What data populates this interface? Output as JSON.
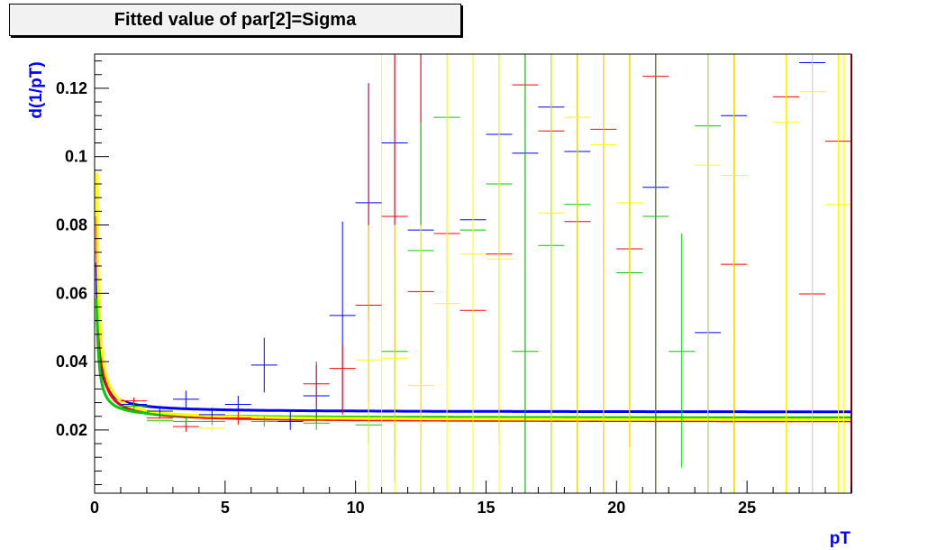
{
  "chart_data": {
    "type": "scatter",
    "title": "Fitted value of par[2]=Sigma",
    "xlabel": "pT",
    "ylabel": "d(1/pT)",
    "xlim": [
      0,
      29
    ],
    "ylim": [
      0.0015,
      0.13
    ],
    "xticks": [
      0,
      5,
      10,
      15,
      20,
      25
    ],
    "yticks": [
      0.02,
      0.04,
      0.06,
      0.08,
      0.1,
      0.12
    ],
    "grid": false,
    "legend": "none",
    "series": [
      {
        "color": "#0000ff",
        "points": [
          {
            "x": 1.5,
            "y": 0.0275,
            "lo": 0.0265,
            "hi": 0.0285
          },
          {
            "x": 2.5,
            "y": 0.0255,
            "lo": 0.0245,
            "hi": 0.0265
          },
          {
            "x": 3.5,
            "y": 0.029,
            "lo": 0.0265,
            "hi": 0.0315
          },
          {
            "x": 4.5,
            "y": 0.0245,
            "lo": 0.0225,
            "hi": 0.0265
          },
          {
            "x": 5.5,
            "y": 0.0275,
            "lo": 0.0255,
            "hi": 0.03
          },
          {
            "x": 6.5,
            "y": 0.039,
            "lo": 0.031,
            "hi": 0.047
          },
          {
            "x": 7.5,
            "y": 0.0225,
            "lo": 0.02,
            "hi": 0.026
          },
          {
            "x": 8.5,
            "y": 0.03,
            "lo": 0.022,
            "hi": 0.039
          },
          {
            "x": 9.5,
            "y": 0.0535,
            "lo": 0.025,
            "hi": 0.081
          },
          {
            "x": 10.5,
            "y": 0.0865,
            "lo": 0.052,
            "hi": 0.1215
          },
          {
            "x": 11.5,
            "y": 0.104,
            "lo": 0.005,
            "hi": 0.13
          },
          {
            "x": 12.5,
            "y": 0.0785,
            "lo": 0.0015,
            "hi": 0.13
          },
          {
            "x": 14.5,
            "y": 0.0815,
            "lo": 0.006,
            "hi": 0.13
          },
          {
            "x": 15.5,
            "y": 0.1065,
            "lo": 0.0155,
            "hi": 0.13
          },
          {
            "x": 16.5,
            "y": 0.101,
            "lo": 0.0015,
            "hi": 0.13
          },
          {
            "x": 17.5,
            "y": 0.1145,
            "lo": 0.0015,
            "hi": 0.13
          },
          {
            "x": 18.5,
            "y": 0.1015,
            "lo": 0.0015,
            "hi": 0.13
          },
          {
            "x": 21.5,
            "y": 0.091,
            "lo": 0.0015,
            "hi": 0.13
          },
          {
            "x": 23.5,
            "y": 0.0485,
            "lo": 0.0015,
            "hi": 0.13
          },
          {
            "x": 24.5,
            "y": 0.112,
            "lo": 0.0015,
            "hi": 0.13
          },
          {
            "x": 27.5,
            "y": 0.1275,
            "lo": 0.0015,
            "hi": 0.13
          }
        ],
        "fit": {
          "a": 0.0252,
          "b": 0.0035,
          "c": 1.0
        }
      },
      {
        "color": "#ff0000",
        "points": [
          {
            "x": 1.5,
            "y": 0.0285,
            "lo": 0.0275,
            "hi": 0.0295
          },
          {
            "x": 2.5,
            "y": 0.0235,
            "lo": 0.0225,
            "hi": 0.0245
          },
          {
            "x": 3.5,
            "y": 0.021,
            "lo": 0.0195,
            "hi": 0.0225
          },
          {
            "x": 5.5,
            "y": 0.0235,
            "lo": 0.0215,
            "hi": 0.0255
          },
          {
            "x": 8.5,
            "y": 0.0335,
            "lo": 0.027,
            "hi": 0.04
          },
          {
            "x": 9.5,
            "y": 0.038,
            "lo": 0.0245,
            "hi": 0.045
          },
          {
            "x": 10.5,
            "y": 0.0565,
            "lo": 0.028,
            "hi": 0.1215
          },
          {
            "x": 11.5,
            "y": 0.0825,
            "lo": 0.04,
            "hi": 0.13
          },
          {
            "x": 12.5,
            "y": 0.0605,
            "lo": 0.018,
            "hi": 0.13
          },
          {
            "x": 13.5,
            "y": 0.0775,
            "lo": 0.04,
            "hi": 0.13
          },
          {
            "x": 14.5,
            "y": 0.055,
            "lo": 0.006,
            "hi": 0.13
          },
          {
            "x": 15.5,
            "y": 0.0715,
            "lo": 0.02,
            "hi": 0.13
          },
          {
            "x": 16.5,
            "y": 0.121,
            "lo": 0.0015,
            "hi": 0.13
          },
          {
            "x": 17.5,
            "y": 0.1075,
            "lo": 0.0015,
            "hi": 0.13
          },
          {
            "x": 18.5,
            "y": 0.081,
            "lo": 0.0015,
            "hi": 0.13
          },
          {
            "x": 19.5,
            "y": 0.108,
            "lo": 0.0015,
            "hi": 0.13
          },
          {
            "x": 20.5,
            "y": 0.073,
            "lo": 0.015,
            "hi": 0.13
          },
          {
            "x": 21.5,
            "y": 0.1235,
            "lo": 0.0015,
            "hi": 0.13
          },
          {
            "x": 24.5,
            "y": 0.0685,
            "lo": 0.0015,
            "hi": 0.13
          },
          {
            "x": 26.5,
            "y": 0.1175,
            "lo": 0.0015,
            "hi": 0.13
          },
          {
            "x": 27.5,
            "y": 0.0598,
            "lo": 0.0015,
            "hi": 0.13
          },
          {
            "x": 28.5,
            "y": 0.1045,
            "lo": 0.0015,
            "hi": 0.13
          }
        ],
        "fit": {
          "a": 0.0225,
          "b": 0.0048,
          "c": 1.0
        }
      },
      {
        "color": "#00cc00",
        "points": [
          {
            "x": 1.5,
            "y": 0.027,
            "lo": 0.0262,
            "hi": 0.0278
          },
          {
            "x": 2.5,
            "y": 0.0228,
            "lo": 0.022,
            "hi": 0.0236
          },
          {
            "x": 3.5,
            "y": 0.0225,
            "lo": 0.0215,
            "hi": 0.0235
          },
          {
            "x": 4.5,
            "y": 0.0225,
            "lo": 0.0215,
            "hi": 0.0235
          },
          {
            "x": 6.5,
            "y": 0.0225,
            "lo": 0.021,
            "hi": 0.024
          },
          {
            "x": 8.5,
            "y": 0.022,
            "lo": 0.02,
            "hi": 0.024
          },
          {
            "x": 10.5,
            "y": 0.0215,
            "lo": 0.016,
            "hi": 0.027
          },
          {
            "x": 11.5,
            "y": 0.043,
            "lo": 0.014,
            "hi": 0.072
          },
          {
            "x": 12.5,
            "y": 0.0725,
            "lo": 0.035,
            "hi": 0.11
          },
          {
            "x": 13.5,
            "y": 0.1115,
            "lo": 0.06,
            "hi": 0.13
          },
          {
            "x": 14.5,
            "y": 0.0785,
            "lo": 0.035,
            "hi": 0.13
          },
          {
            "x": 15.5,
            "y": 0.092,
            "lo": 0.05,
            "hi": 0.13
          },
          {
            "x": 16.5,
            "y": 0.043,
            "lo": 0.0015,
            "hi": 0.13
          },
          {
            "x": 17.5,
            "y": 0.074,
            "lo": 0.0015,
            "hi": 0.13
          },
          {
            "x": 18.5,
            "y": 0.086,
            "lo": 0.0015,
            "hi": 0.13
          },
          {
            "x": 20.5,
            "y": 0.066,
            "lo": 0.025,
            "hi": 0.13
          },
          {
            "x": 21.5,
            "y": 0.0825,
            "lo": 0.0015,
            "hi": 0.13
          },
          {
            "x": 22.5,
            "y": 0.043,
            "lo": 0.009,
            "hi": 0.0775
          },
          {
            "x": 23.5,
            "y": 0.109,
            "lo": 0.0015,
            "hi": 0.13
          }
        ],
        "fit": {
          "a": 0.0235,
          "b": 0.0028,
          "c": 1.0
        }
      },
      {
        "color": "#ffff00",
        "points": [
          {
            "x": 2.5,
            "y": 0.0225,
            "lo": 0.0217,
            "hi": 0.0233
          },
          {
            "x": 4.5,
            "y": 0.0205,
            "lo": 0.0195,
            "hi": 0.0215
          },
          {
            "x": 10.5,
            "y": 0.0405,
            "lo": 0.0015,
            "hi": 0.08
          },
          {
            "x": 11.5,
            "y": 0.041,
            "lo": 0.0015,
            "hi": 0.08
          },
          {
            "x": 12.5,
            "y": 0.033,
            "lo": 0.0015,
            "hi": 0.08
          },
          {
            "x": 13.5,
            "y": 0.057,
            "lo": 0.0015,
            "hi": 0.13
          },
          {
            "x": 14.5,
            "y": 0.0715,
            "lo": 0.0015,
            "hi": 0.13
          },
          {
            "x": 15.5,
            "y": 0.07,
            "lo": 0.0015,
            "hi": 0.13
          },
          {
            "x": 17.5,
            "y": 0.0835,
            "lo": 0.0015,
            "hi": 0.13
          },
          {
            "x": 18.5,
            "y": 0.1115,
            "lo": 0.0015,
            "hi": 0.13
          },
          {
            "x": 19.5,
            "y": 0.1035,
            "lo": 0.0015,
            "hi": 0.13
          },
          {
            "x": 20.5,
            "y": 0.0865,
            "lo": 0.0015,
            "hi": 0.13
          },
          {
            "x": 23.5,
            "y": 0.0975,
            "lo": 0.0015,
            "hi": 0.13
          },
          {
            "x": 24.5,
            "y": 0.0945,
            "lo": 0.0015,
            "hi": 0.13
          },
          {
            "x": 26.5,
            "y": 0.11,
            "lo": 0.0015,
            "hi": 0.13
          },
          {
            "x": 27.5,
            "y": 0.119,
            "lo": 0.0015,
            "hi": 0.13
          },
          {
            "x": 28.5,
            "y": 0.086,
            "lo": 0.0015,
            "hi": 0.13
          }
        ],
        "fit": {
          "a": 0.0228,
          "b": 0.0058,
          "c": 1.0
        }
      }
    ],
    "extra_lines": [
      {
        "color": "#ffff00",
        "x": 11.0,
        "from": 0.0015,
        "to": 0.13
      },
      {
        "color": "#ffff00",
        "x": 19.5,
        "from": 0.0015,
        "to": 0.13
      },
      {
        "color": "#ffff00",
        "x": 26.5,
        "from": 0.0015,
        "to": 0.13
      },
      {
        "color": "#ffff00",
        "x": 28.7,
        "from": 0.0015,
        "to": 0.13
      },
      {
        "color": "#ffff00",
        "x": 29.0,
        "from": 0.0015,
        "to": 0.13
      }
    ],
    "frame_right_color": "#800000"
  }
}
